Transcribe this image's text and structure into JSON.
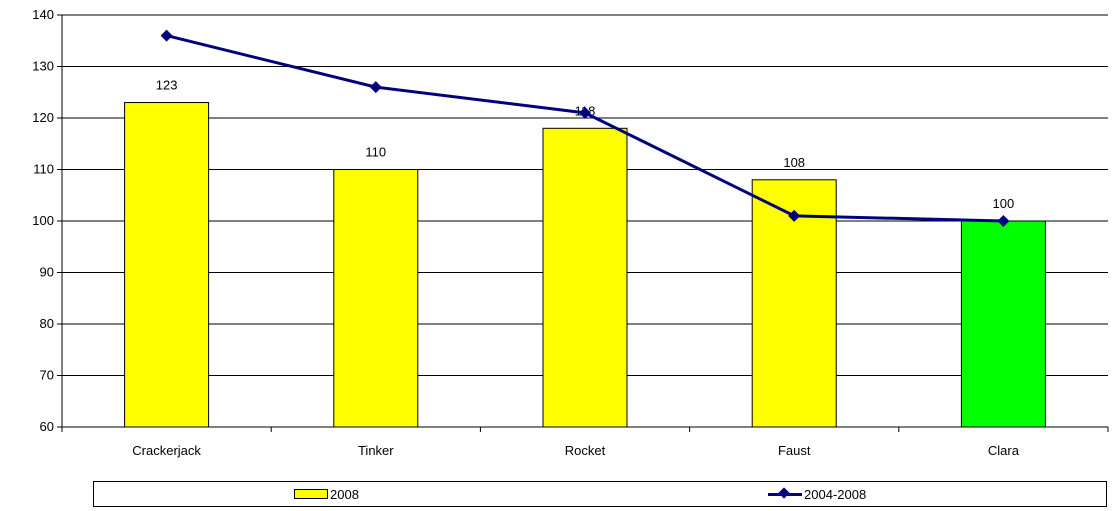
{
  "chart_data": {
    "type": "bar",
    "categories": [
      "Crackerjack",
      "Tinker",
      "Rocket",
      "Faust",
      "Clara"
    ],
    "series": [
      {
        "name": "2008",
        "kind": "bar",
        "values": [
          123,
          110,
          118,
          108,
          100
        ],
        "colors": [
          "#ffff00",
          "#ffff00",
          "#ffff00",
          "#ffff00",
          "#00ff00"
        ]
      },
      {
        "name": "2004-2008",
        "kind": "line",
        "values": [
          136,
          126,
          121,
          101,
          100
        ],
        "color": "#00007f"
      }
    ],
    "data_labels": [
      "123",
      "110",
      "118",
      "108",
      "100"
    ],
    "ylim": [
      60,
      140
    ],
    "yticks": [
      "60",
      "70",
      "80",
      "90",
      "100",
      "110",
      "120",
      "130",
      "140"
    ],
    "grid": true,
    "legend": "bottom"
  }
}
